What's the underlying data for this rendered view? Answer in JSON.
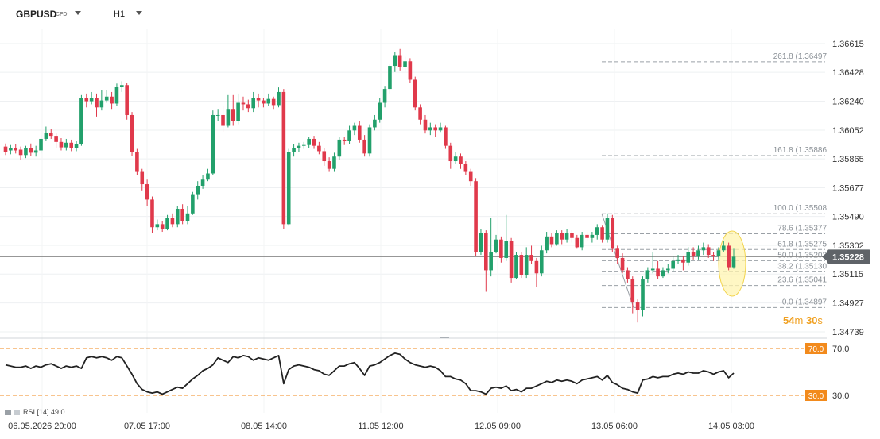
{
  "toolbar": {
    "symbol": "GBPUSD",
    "symbol_type": "CFD",
    "timeframe": "H1"
  },
  "chart_data": {
    "type": "candlestick",
    "symbol": "GBPUSD",
    "timeframe": "H1",
    "price_axis_ticks": [
      "1.36615",
      "1.36428",
      "1.36240",
      "1.36052",
      "1.35865",
      "1.35677",
      "1.35490",
      "1.35302",
      "1.35115",
      "1.34927",
      "1.34739"
    ],
    "ylim": [
      1.34739,
      1.36615
    ],
    "current_price": 1.35228,
    "current_price_label": "1.35228",
    "countdown": {
      "minutes": "54",
      "m": "m",
      "seconds": "30",
      "s": "s"
    },
    "time_axis_labels": [
      "06.05.2026 20:00",
      "07.05 17:00",
      "08.05 14:00",
      "11.05 12:00",
      "12.05 09:00",
      "13.05 06:00",
      "14.05 03:00"
    ],
    "fibonacci_levels": [
      {
        "label": "261.8 (1.36497",
        "value": 1.36497
      },
      {
        "label": "161.8 (1.35886",
        "value": 1.35886
      },
      {
        "label": "100.0 (1.35508",
        "value": 1.35508
      },
      {
        "label": "78.6 (1.35377",
        "value": 1.35377
      },
      {
        "label": "61.8 (1.35275",
        "value": 1.35275
      },
      {
        "label": "50.0 (1.35202",
        "value": 1.35202
      },
      {
        "label": "38.2 (1.35130",
        "value": 1.3513
      },
      {
        "label": "23.6 (1.35041",
        "value": 1.35041
      },
      {
        "label": "0.0 (1.34897",
        "value": 1.34897
      }
    ],
    "colors": {
      "up": "#22a06b",
      "down": "#e0394b",
      "fib": "#9aa0a6",
      "rsi_line": "#222222",
      "rsi_band": "#f28a1c",
      "highlight": "#fff4b0",
      "highlight_stroke": "#f2d44c"
    },
    "candles": [
      [
        1.35945,
        1.3591,
        1.35965,
        1.3589
      ],
      [
        1.3592,
        1.35935,
        1.35955,
        1.35895
      ],
      [
        1.35935,
        1.3592,
        1.3596,
        1.359
      ],
      [
        1.35925,
        1.3589,
        1.35945,
        1.3586
      ],
      [
        1.3589,
        1.35935,
        1.3595,
        1.3587
      ],
      [
        1.35935,
        1.35905,
        1.35965,
        1.35885
      ],
      [
        1.35905,
        1.3592,
        1.3595,
        1.3588
      ],
      [
        1.3592,
        1.35995,
        1.3602,
        1.359
      ],
      [
        1.35995,
        1.36035,
        1.36075,
        1.35985
      ],
      [
        1.36035,
        1.36015,
        1.3606,
        1.35995
      ],
      [
        1.36015,
        1.35975,
        1.3603,
        1.35935
      ],
      [
        1.35975,
        1.3594,
        1.36,
        1.3592
      ],
      [
        1.3594,
        1.3597,
        1.35995,
        1.3592
      ],
      [
        1.3597,
        1.35935,
        1.3599,
        1.35915
      ],
      [
        1.35935,
        1.3596,
        1.3598,
        1.35915
      ],
      [
        1.3596,
        1.3626,
        1.3628,
        1.3595
      ],
      [
        1.3626,
        1.3624,
        1.3629,
        1.362
      ],
      [
        1.3624,
        1.3626,
        1.363,
        1.3622
      ],
      [
        1.3626,
        1.362,
        1.3629,
        1.3614
      ],
      [
        1.362,
        1.36245,
        1.3631,
        1.3618
      ],
      [
        1.36245,
        1.3627,
        1.36315,
        1.3623
      ],
      [
        1.3627,
        1.36225,
        1.363,
        1.3619
      ],
      [
        1.36225,
        1.36335,
        1.36355,
        1.3621
      ],
      [
        1.36335,
        1.36345,
        1.3637,
        1.363
      ],
      [
        1.36345,
        1.3615,
        1.3636,
        1.3612
      ],
      [
        1.3615,
        1.3591,
        1.3617,
        1.35885
      ],
      [
        1.3591,
        1.3578,
        1.3593,
        1.3576
      ],
      [
        1.3578,
        1.357,
        1.358,
        1.3566
      ],
      [
        1.357,
        1.356,
        1.3573,
        1.3556
      ],
      [
        1.356,
        1.3542,
        1.3562,
        1.3538
      ],
      [
        1.3542,
        1.3544,
        1.3547,
        1.354
      ],
      [
        1.3544,
        1.3541,
        1.3546,
        1.3539
      ],
      [
        1.3541,
        1.3548,
        1.355,
        1.354
      ],
      [
        1.3548,
        1.3544,
        1.3551,
        1.3542
      ],
      [
        1.3544,
        1.3554,
        1.3556,
        1.3542
      ],
      [
        1.3554,
        1.3546,
        1.3557,
        1.3544
      ],
      [
        1.3546,
        1.3551,
        1.3556,
        1.3544
      ],
      [
        1.3551,
        1.3563,
        1.3565,
        1.355
      ],
      [
        1.3563,
        1.3569,
        1.3572,
        1.356
      ],
      [
        1.3569,
        1.3573,
        1.3576,
        1.3567
      ],
      [
        1.3573,
        1.3577,
        1.358,
        1.3572
      ],
      [
        1.3577,
        1.3615,
        1.3618,
        1.3576
      ],
      [
        1.3615,
        1.3615,
        1.3619,
        1.3611
      ],
      [
        1.3615,
        1.3608,
        1.3621,
        1.3604
      ],
      [
        1.3608,
        1.3619,
        1.3628,
        1.3607
      ],
      [
        1.3619,
        1.3611,
        1.3628,
        1.3608
      ],
      [
        1.3611,
        1.3623,
        1.3629,
        1.3609
      ],
      [
        1.3623,
        1.3622,
        1.3627,
        1.3618
      ],
      [
        1.3622,
        1.36195,
        1.3625,
        1.3617
      ],
      [
        1.36195,
        1.3626,
        1.363,
        1.3617
      ],
      [
        1.3626,
        1.36245,
        1.3629,
        1.362
      ],
      [
        1.36245,
        1.36225,
        1.3626,
        1.362
      ],
      [
        1.36225,
        1.36255,
        1.3629,
        1.3621
      ],
      [
        1.36255,
        1.36215,
        1.3627,
        1.3619
      ],
      [
        1.36215,
        1.363,
        1.3633,
        1.362
      ],
      [
        1.363,
        1.3544,
        1.3632,
        1.3541
      ],
      [
        1.3544,
        1.3591,
        1.3593,
        1.3543
      ],
      [
        1.3591,
        1.35935,
        1.3596,
        1.3588
      ],
      [
        1.35935,
        1.3595,
        1.3597,
        1.3591
      ],
      [
        1.3595,
        1.35955,
        1.35975,
        1.3593
      ],
      [
        1.35955,
        1.35995,
        1.3601,
        1.35935
      ],
      [
        1.35995,
        1.3595,
        1.36015,
        1.3593
      ],
      [
        1.3595,
        1.35915,
        1.35975,
        1.35895
      ],
      [
        1.35915,
        1.3585,
        1.35935,
        1.3582
      ],
      [
        1.3585,
        1.358,
        1.35875,
        1.3578
      ],
      [
        1.358,
        1.3588,
        1.35905,
        1.3578
      ],
      [
        1.3588,
        1.3599,
        1.36005,
        1.3586
      ],
      [
        1.3599,
        1.3598,
        1.3601,
        1.35955
      ],
      [
        1.3598,
        1.3605,
        1.3608,
        1.3596
      ],
      [
        1.3605,
        1.3608,
        1.361,
        1.3602
      ],
      [
        1.3608,
        1.3599,
        1.3611,
        1.3597
      ],
      [
        1.3599,
        1.359,
        1.3602,
        1.3588
      ],
      [
        1.359,
        1.3607,
        1.3609,
        1.3588
      ],
      [
        1.3607,
        1.3612,
        1.3615,
        1.3605
      ],
      [
        1.3612,
        1.3623,
        1.3626,
        1.361
      ],
      [
        1.3623,
        1.3632,
        1.3634,
        1.362
      ],
      [
        1.3632,
        1.3647,
        1.3648,
        1.3629
      ],
      [
        1.3647,
        1.3654,
        1.3656,
        1.3643
      ],
      [
        1.3654,
        1.3646,
        1.3658,
        1.3644
      ],
      [
        1.3646,
        1.365,
        1.3653,
        1.3643
      ],
      [
        1.365,
        1.3638,
        1.3652,
        1.3636
      ],
      [
        1.3638,
        1.362,
        1.364,
        1.3618
      ],
      [
        1.362,
        1.3612,
        1.3622,
        1.3609
      ],
      [
        1.3612,
        1.3605,
        1.3615,
        1.3603
      ],
      [
        1.3605,
        1.3607,
        1.361,
        1.3602
      ],
      [
        1.3607,
        1.3605,
        1.3609,
        1.3601
      ],
      [
        1.3605,
        1.3607,
        1.361,
        1.3604
      ],
      [
        1.3607,
        1.3595,
        1.3608,
        1.3593
      ],
      [
        1.3595,
        1.3585,
        1.3597,
        1.358
      ],
      [
        1.3585,
        1.3588,
        1.3591,
        1.3583
      ],
      [
        1.3588,
        1.3583,
        1.359,
        1.358
      ],
      [
        1.3583,
        1.3578,
        1.3585,
        1.3576
      ],
      [
        1.3578,
        1.3572,
        1.358,
        1.3569
      ],
      [
        1.3572,
        1.3526,
        1.3574,
        1.3523
      ],
      [
        1.3526,
        1.3538,
        1.3541,
        1.3524
      ],
      [
        1.3538,
        1.3514,
        1.354,
        1.35
      ],
      [
        1.3514,
        1.3526,
        1.3548,
        1.351
      ],
      [
        1.3526,
        1.3534,
        1.3537,
        1.3525
      ],
      [
        1.3534,
        1.3522,
        1.3536,
        1.3519
      ],
      [
        1.3522,
        1.3533,
        1.355,
        1.352
      ],
      [
        1.3533,
        1.3509,
        1.3535,
        1.3506
      ],
      [
        1.3509,
        1.3524,
        1.3526,
        1.3508
      ],
      [
        1.3524,
        1.3511,
        1.3526,
        1.3509
      ],
      [
        1.3511,
        1.3524,
        1.3529,
        1.3509
      ],
      [
        1.3524,
        1.352,
        1.353,
        1.3518
      ],
      [
        1.352,
        1.3512,
        1.3522,
        1.3503
      ],
      [
        1.3512,
        1.3527,
        1.353,
        1.351
      ],
      [
        1.3527,
        1.3536,
        1.3539,
        1.3525
      ],
      [
        1.3536,
        1.3531,
        1.3538,
        1.3529
      ],
      [
        1.3531,
        1.3538,
        1.354,
        1.353
      ],
      [
        1.3538,
        1.3534,
        1.354,
        1.3531
      ],
      [
        1.3534,
        1.3538,
        1.3541,
        1.3532
      ],
      [
        1.3538,
        1.3535,
        1.354,
        1.3532
      ],
      [
        1.3535,
        1.3529,
        1.3537,
        1.3528
      ],
      [
        1.3529,
        1.3537,
        1.3539,
        1.3527
      ],
      [
        1.3537,
        1.3535,
        1.3539,
        1.3533
      ],
      [
        1.3535,
        1.3537,
        1.3539,
        1.3532
      ],
      [
        1.3537,
        1.3542,
        1.3544,
        1.3534
      ],
      [
        1.3542,
        1.3534,
        1.3543,
        1.3532
      ],
      [
        1.3534,
        1.3548,
        1.3551,
        1.3532
      ],
      [
        1.3548,
        1.3528,
        1.355,
        1.3526
      ],
      [
        1.3528,
        1.3522,
        1.353,
        1.3518
      ],
      [
        1.3522,
        1.3514,
        1.3525,
        1.3512
      ],
      [
        1.3514,
        1.3508,
        1.3516,
        1.3506
      ],
      [
        1.3508,
        1.3493,
        1.351,
        1.3486
      ],
      [
        1.3493,
        1.3488,
        1.3495,
        1.348
      ],
      [
        1.3488,
        1.3508,
        1.351,
        1.3484
      ],
      [
        1.3508,
        1.3514,
        1.3516,
        1.3506
      ],
      [
        1.3514,
        1.3515,
        1.3526,
        1.3512
      ],
      [
        1.3515,
        1.351,
        1.352,
        1.3508
      ],
      [
        1.351,
        1.3514,
        1.3516,
        1.3509
      ],
      [
        1.3514,
        1.3515,
        1.3518,
        1.3512
      ],
      [
        1.3515,
        1.352,
        1.3523,
        1.3513
      ],
      [
        1.352,
        1.3521,
        1.3524,
        1.3518
      ],
      [
        1.3521,
        1.3519,
        1.3523,
        1.3514
      ],
      [
        1.3519,
        1.3526,
        1.3529,
        1.3517
      ],
      [
        1.3526,
        1.3523,
        1.3529,
        1.3521
      ],
      [
        1.3523,
        1.3527,
        1.353,
        1.3521
      ],
      [
        1.3527,
        1.3529,
        1.3532,
        1.3524
      ],
      [
        1.3529,
        1.3524,
        1.3531,
        1.3522
      ],
      [
        1.3524,
        1.3523,
        1.3526,
        1.352
      ],
      [
        1.3523,
        1.3527,
        1.3529,
        1.3521
      ],
      [
        1.3527,
        1.353,
        1.3533,
        1.3526
      ],
      [
        1.353,
        1.3516,
        1.3532,
        1.3514
      ],
      [
        1.3516,
        1.35228,
        1.3528,
        1.3515
      ]
    ],
    "rsi": {
      "label": "RSI [14] 49.0",
      "upper_label": "70.0",
      "lower_label": "30.0",
      "upper": 70,
      "lower": 30,
      "values": [
        56,
        55,
        54,
        54,
        55,
        53,
        55,
        54,
        56,
        57,
        55,
        53,
        55,
        54,
        55,
        53,
        62,
        63,
        62,
        63,
        62,
        60,
        63,
        62,
        55,
        48,
        40,
        35,
        33,
        32,
        33,
        31,
        33,
        35,
        37,
        36,
        40,
        44,
        47,
        51,
        53,
        56,
        62,
        60,
        58,
        63,
        62,
        64,
        63,
        60,
        62,
        61,
        60,
        62,
        64,
        40,
        52,
        55,
        56,
        55,
        54,
        52,
        51,
        48,
        47,
        51,
        55,
        55,
        57,
        58,
        53,
        47,
        55,
        56,
        58,
        61,
        64,
        66,
        65,
        61,
        58,
        56,
        55,
        54,
        55,
        54,
        51,
        46,
        46,
        44,
        43,
        40,
        34,
        34,
        33,
        31,
        36,
        37,
        36,
        38,
        34,
        35,
        33,
        36,
        36,
        38,
        40,
        42,
        41,
        43,
        42,
        43,
        42,
        40,
        43,
        44,
        45,
        46,
        43,
        47,
        41,
        39,
        36,
        35,
        33,
        32,
        43,
        44,
        46,
        45,
        46,
        46,
        48,
        49,
        48,
        50,
        49,
        49,
        51,
        50,
        48,
        50,
        51,
        45,
        49
      ]
    }
  }
}
